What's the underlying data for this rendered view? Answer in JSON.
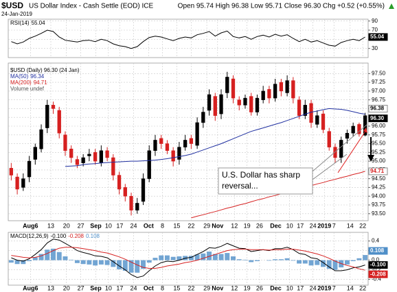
{
  "header": {
    "symbol": "$USD",
    "name": "US Dollar Index - Cash Settle (EOD) ICE",
    "date": "24-Jan-2019",
    "quote": "Open 95.74 High 96.38 Low 95.71 Close 96.30 Chg +0.52 (+0.55%)"
  },
  "annotation": [
    "U.S. Dollar has sharp",
    "reversal..."
  ],
  "chart_data": [
    {
      "type": "line",
      "name": "RSI(14)",
      "ylim": [
        10,
        94
      ],
      "yticks": [
        90,
        70,
        50,
        30
      ],
      "grid": true,
      "series": [
        {
          "name": "RSI(14)",
          "color": "#000000",
          "last_label": "55.04",
          "values": [
            45,
            40,
            44,
            52,
            57,
            63,
            70,
            67,
            55,
            48,
            46,
            44,
            47,
            48,
            45,
            50,
            47,
            40,
            36,
            34,
            30,
            34,
            45,
            54,
            57,
            55,
            51,
            47,
            52,
            55,
            53,
            60,
            63,
            67,
            57,
            64,
            68,
            56,
            53,
            56,
            50,
            56,
            59,
            55,
            61,
            57,
            60,
            52,
            45,
            50,
            44,
            47,
            42,
            37,
            35,
            43,
            47,
            50,
            47,
            55.04
          ]
        }
      ]
    },
    {
      "type": "candlestick",
      "legend": "$USD (Daily) 96.30 (24 Jan)",
      "volume": "Volume undef",
      "up_color": "#000000",
      "down_color": "#d62020",
      "grid": true,
      "xlim": [
        -0.5,
        59.5
      ],
      "ylim": [
        93.3,
        97.8
      ],
      "yticks": [
        {
          "value": 97.5,
          "label": "97.50"
        },
        {
          "value": 97.25,
          "label": "97.25"
        },
        {
          "value": 97,
          "label": "97.00"
        },
        {
          "value": 96.75,
          "label": "96.75"
        },
        {
          "value": 96.5,
          "label": "96.50"
        },
        {
          "value": 96.25,
          "label": "96.25"
        },
        {
          "value": 96,
          "label": "96.00"
        },
        {
          "value": 95.75,
          "label": "95.75"
        },
        {
          "value": 95.5,
          "label": "95.50"
        },
        {
          "value": 95.25,
          "label": "95.25"
        },
        {
          "value": 95,
          "label": "95.00"
        },
        {
          "value": 94.75,
          "label": "94.75"
        },
        {
          "value": 94.5,
          "label": "94.50"
        },
        {
          "value": 94.25,
          "label": "94.25"
        },
        {
          "value": 94,
          "label": "94.00"
        },
        {
          "value": 93.75,
          "label": "93.75"
        },
        {
          "value": 93.5,
          "label": "93.50"
        }
      ],
      "xticks": [
        {
          "value": 3.2,
          "label": "Aug6"
        },
        {
          "value": 6.6,
          "label": "13"
        },
        {
          "value": 9.2,
          "label": "20"
        },
        {
          "value": 11.6,
          "label": "27"
        },
        {
          "value": 14.1,
          "label": "Sep"
        },
        {
          "value": 16.2,
          "label": "10"
        },
        {
          "value": 18.1,
          "label": "17"
        },
        {
          "value": 20.4,
          "label": "24"
        },
        {
          "value": 22.9,
          "label": "Oct"
        },
        {
          "value": 25.2,
          "label": "8"
        },
        {
          "value": 27.6,
          "label": "15"
        },
        {
          "value": 30,
          "label": "22"
        },
        {
          "value": 32.6,
          "label": "29"
        },
        {
          "value": 34.4,
          "label": "Nov"
        },
        {
          "value": 37.2,
          "label": "12"
        },
        {
          "value": 39.3,
          "label": "19"
        },
        {
          "value": 41.4,
          "label": "26"
        },
        {
          "value": 44.1,
          "label": "Dec"
        },
        {
          "value": 46.4,
          "label": "10"
        },
        {
          "value": 48.2,
          "label": "17"
        },
        {
          "value": 50.3,
          "label": "24"
        },
        {
          "value": 52.2,
          "label": "2019"
        },
        {
          "value": 53.8,
          "label": "7"
        },
        {
          "value": 56.5,
          "label": "14"
        },
        {
          "value": 58.6,
          "label": "22"
        }
      ],
      "open": [
        94.8,
        94.55,
        94.25,
        94.55,
        95.05,
        95.35,
        95.95,
        96.6,
        96.45,
        95.75,
        95.35,
        95.05,
        94.95,
        95.15,
        95.25,
        94.95,
        95.3,
        95.1,
        94.6,
        94.25,
        94.0,
        93.6,
        93.85,
        94.5,
        95.3,
        95.65,
        95.5,
        95.3,
        95.05,
        95.4,
        95.65,
        95.45,
        96.1,
        96.45,
        96.85,
        96.35,
        96.95,
        97.35,
        96.75,
        96.6,
        96.85,
        96.4,
        96.75,
        97.05,
        96.8,
        97.25,
        96.95,
        97.3,
        96.75,
        96.3,
        96.65,
        96.05,
        96.35,
        95.85,
        95.4,
        95.1,
        95.65,
        95.8,
        96.05,
        95.74
      ],
      "high": [
        94.95,
        94.65,
        94.65,
        95.15,
        95.5,
        96.05,
        96.75,
        96.7,
        96.55,
        95.85,
        95.45,
        95.15,
        95.2,
        95.35,
        95.35,
        95.45,
        95.4,
        95.2,
        94.7,
        94.35,
        94.1,
        93.95,
        94.65,
        95.45,
        95.75,
        95.75,
        95.6,
        95.4,
        95.55,
        95.75,
        95.75,
        96.25,
        96.55,
        97.05,
        96.95,
        97.05,
        97.55,
        97.45,
        96.85,
        96.9,
        96.95,
        96.9,
        97.15,
        97.15,
        97.35,
        97.35,
        97.45,
        97.4,
        96.85,
        96.75,
        96.75,
        96.45,
        96.45,
        95.95,
        95.5,
        95.7,
        95.9,
        96.1,
        96.1,
        96.38
      ],
      "low": [
        94.45,
        94.05,
        94.15,
        94.4,
        94.9,
        95.25,
        95.8,
        96.35,
        95.65,
        95.15,
        94.95,
        94.8,
        94.85,
        95.0,
        94.9,
        94.85,
        95.0,
        94.45,
        94.05,
        93.85,
        93.45,
        93.5,
        93.75,
        94.4,
        95.15,
        95.35,
        95.2,
        94.85,
        94.9,
        95.3,
        95.35,
        95.35,
        95.95,
        96.3,
        96.15,
        96.2,
        96.8,
        96.65,
        96.45,
        96.5,
        96.3,
        96.3,
        96.65,
        96.65,
        96.7,
        96.85,
        96.85,
        96.65,
        96.2,
        96.2,
        95.95,
        95.95,
        95.8,
        95.3,
        94.95,
        94.95,
        95.5,
        95.7,
        95.7,
        95.71
      ],
      "close": [
        94.6,
        94.2,
        94.5,
        95.0,
        95.4,
        95.9,
        96.6,
        96.5,
        95.8,
        95.3,
        95.1,
        94.9,
        95.1,
        95.2,
        95.0,
        95.3,
        95.1,
        94.6,
        94.2,
        94.0,
        93.6,
        93.8,
        94.5,
        95.3,
        95.6,
        95.5,
        95.3,
        95.0,
        95.4,
        95.6,
        95.5,
        96.1,
        96.4,
        96.9,
        96.3,
        96.9,
        97.4,
        96.8,
        96.6,
        96.8,
        96.4,
        96.8,
        97.0,
        96.8,
        97.2,
        97.0,
        97.3,
        96.8,
        96.3,
        96.6,
        96.1,
        96.3,
        95.9,
        95.4,
        95.1,
        95.6,
        95.8,
        96.0,
        95.78,
        96.3
      ],
      "high_label": "96.38",
      "close_label": "96.30",
      "series": [
        {
          "name": "MA(50)",
          "color": "#1f2fa0",
          "last_label": "96.34",
          "values": [
            null,
            null,
            null,
            null,
            null,
            null,
            null,
            null,
            null,
            94.85,
            94.86,
            94.87,
            94.9,
            94.92,
            94.93,
            94.95,
            94.96,
            94.97,
            94.98,
            94.99,
            95.0,
            95.0,
            95.01,
            95.02,
            95.03,
            95.05,
            95.07,
            95.1,
            95.13,
            95.16,
            95.2,
            95.26,
            95.32,
            95.38,
            95.44,
            95.5,
            95.57,
            95.64,
            95.71,
            95.78,
            95.85,
            95.9,
            95.95,
            96.0,
            96.05,
            96.1,
            96.16,
            96.22,
            96.28,
            96.34,
            96.4,
            96.43,
            96.47,
            96.5,
            96.49,
            96.48,
            96.45,
            96.41,
            96.37,
            96.34
          ]
        },
        {
          "name": "MA(200)",
          "color": "#d62020",
          "last_label": "94.71",
          "values": [
            null,
            null,
            null,
            null,
            null,
            null,
            null,
            null,
            null,
            null,
            null,
            null,
            null,
            null,
            null,
            null,
            null,
            null,
            null,
            null,
            null,
            null,
            null,
            null,
            null,
            null,
            null,
            null,
            null,
            null,
            93.38,
            93.43,
            93.47,
            93.52,
            93.56,
            93.61,
            93.66,
            93.7,
            93.75,
            93.79,
            93.84,
            93.89,
            93.93,
            93.98,
            94.02,
            94.07,
            94.12,
            94.16,
            94.21,
            94.25,
            94.3,
            94.35,
            94.39,
            94.44,
            94.48,
            94.53,
            94.57,
            94.62,
            94.66,
            94.71
          ]
        }
      ]
    },
    {
      "type": "line",
      "name": "MACD(12,26,9)",
      "ylim": [
        -0.52,
        0.58
      ],
      "yticks": [
        0.4,
        0.2,
        {
          "value": 0,
          "label": "0.0"
        },
        -0.2,
        -0.4
      ],
      "grid": true,
      "series": [
        {
          "name": "MACD",
          "color": "#000000",
          "last_label": "-0.100",
          "values": [
            0.05,
            0.0,
            -0.02,
            0.03,
            0.12,
            0.22,
            0.36,
            0.44,
            0.42,
            0.35,
            0.28,
            0.2,
            0.16,
            0.13,
            0.09,
            0.08,
            0.05,
            -0.03,
            -0.12,
            -0.2,
            -0.3,
            -0.36,
            -0.33,
            -0.22,
            -0.12,
            -0.05,
            -0.02,
            -0.03,
            0.0,
            0.04,
            0.06,
            0.12,
            0.18,
            0.26,
            0.25,
            0.29,
            0.35,
            0.3,
            0.25,
            0.24,
            0.18,
            0.2,
            0.22,
            0.2,
            0.24,
            0.24,
            0.27,
            0.22,
            0.14,
            0.12,
            0.05,
            0.03,
            -0.05,
            -0.14,
            -0.22,
            -0.22,
            -0.2,
            -0.16,
            -0.14,
            -0.1
          ]
        },
        {
          "name": "Signal",
          "color": "#d62020",
          "last_label": "-0.208",
          "values": [
            0.1,
            0.08,
            0.06,
            0.05,
            0.06,
            0.09,
            0.14,
            0.2,
            0.25,
            0.27,
            0.27,
            0.26,
            0.24,
            0.22,
            0.2,
            0.17,
            0.15,
            0.11,
            0.07,
            0.02,
            -0.04,
            -0.1,
            -0.15,
            -0.17,
            -0.17,
            -0.15,
            -0.12,
            -0.1,
            -0.08,
            -0.05,
            -0.03,
            0.0,
            0.04,
            0.08,
            0.12,
            0.16,
            0.2,
            0.22,
            0.23,
            0.23,
            0.22,
            0.22,
            0.22,
            0.21,
            0.22,
            0.22,
            0.23,
            0.23,
            0.21,
            0.19,
            0.16,
            0.13,
            0.09,
            0.04,
            -0.02,
            -0.07,
            -0.11,
            -0.14,
            -0.18,
            -0.208
          ]
        },
        {
          "name": "Histogram",
          "style": "histogram",
          "color": "#4f8fc8",
          "last_label": "0.108",
          "values": [
            -0.05,
            -0.08,
            -0.08,
            -0.02,
            0.06,
            0.13,
            0.22,
            0.24,
            0.17,
            0.08,
            0.01,
            -0.06,
            -0.08,
            -0.09,
            -0.11,
            -0.09,
            -0.1,
            -0.14,
            -0.19,
            -0.22,
            -0.26,
            -0.26,
            -0.18,
            -0.05,
            0.05,
            0.1,
            0.1,
            0.07,
            0.08,
            0.09,
            0.09,
            0.12,
            0.14,
            0.18,
            0.13,
            0.13,
            0.15,
            0.08,
            0.02,
            0.01,
            -0.04,
            -0.02,
            0.0,
            -0.01,
            0.02,
            0.02,
            0.04,
            -0.01,
            -0.07,
            -0.07,
            -0.11,
            -0.1,
            -0.14,
            -0.18,
            -0.2,
            -0.15,
            -0.09,
            -0.02,
            0.04,
            0.108
          ]
        }
      ]
    }
  ]
}
